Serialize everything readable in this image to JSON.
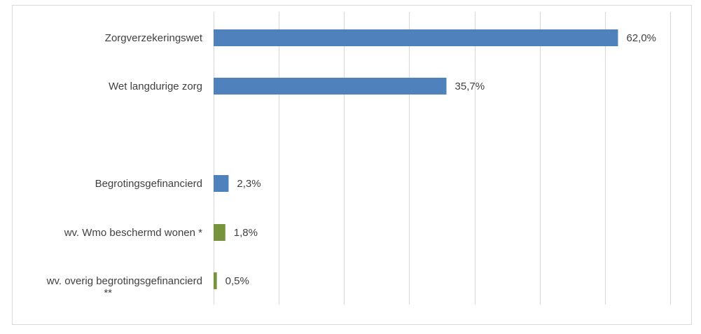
{
  "chart_data": {
    "type": "bar",
    "orientation": "horizontal",
    "categories": [
      {
        "label_lines": [
          "Zorgverzekeringswet"
        ],
        "value": 62.0,
        "value_label": "62,0%",
        "color": "#4f81bd"
      },
      {
        "label_lines": [
          "Wet langdurige zorg"
        ],
        "value": 35.7,
        "value_label": "35,7%",
        "color": "#4f81bd"
      },
      {
        "label_lines": [],
        "value": null,
        "value_label": "",
        "color": ""
      },
      {
        "label_lines": [
          "Begrotingsgefinancierd"
        ],
        "value": 2.3,
        "value_label": "2,3%",
        "color": "#4f81bd"
      },
      {
        "label_lines": [
          "wv. Wmo beschermd wonen *"
        ],
        "value": 1.8,
        "value_label": "1,8%",
        "color": "#77933c"
      },
      {
        "label_lines": [
          "wv. overig begrotingsgefinancierd",
          "**"
        ],
        "value": 0.5,
        "value_label": "0,5%",
        "color": "#77933c"
      }
    ],
    "xlim": [
      0,
      70
    ],
    "gridlines_every": 10,
    "grid": true,
    "legend": "none",
    "title": "",
    "xlabel": "",
    "ylabel": ""
  },
  "colors": {
    "primary_bar": "#4f81bd",
    "secondary_bar": "#77933c",
    "gridline": "#d9d9d9",
    "text": "#404040",
    "border": "#d9d9d9"
  }
}
